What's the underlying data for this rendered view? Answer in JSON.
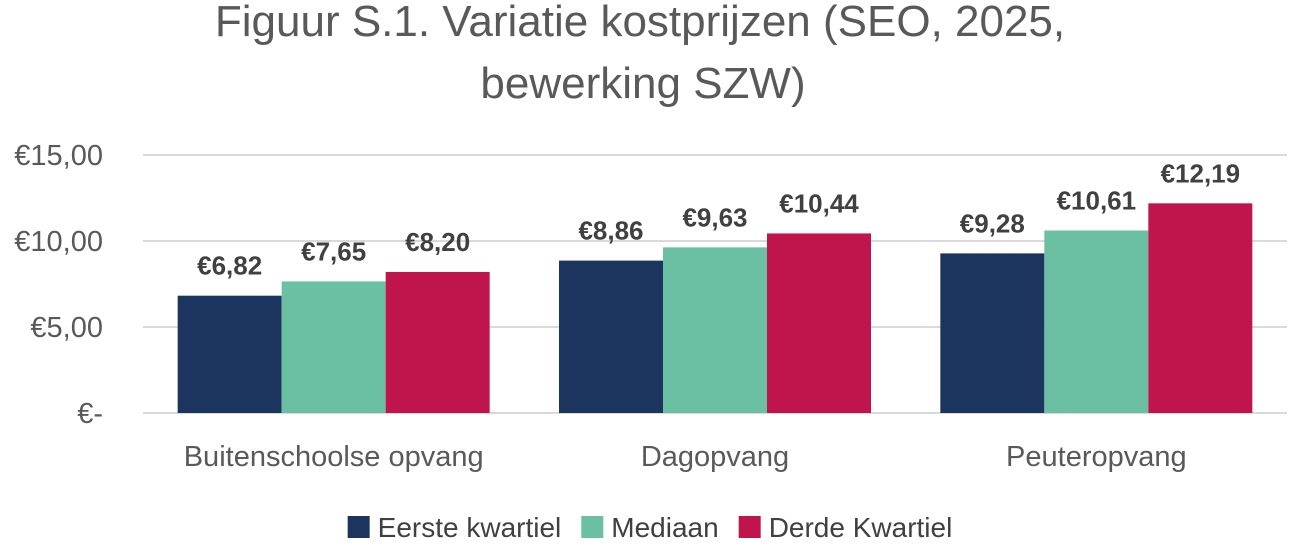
{
  "chart_data": {
    "type": "bar",
    "title_lines": [
      "Figuur S.1. Variatie kostprijzen (SEO, 2025,",
      "bewerking SZW)"
    ],
    "categories": [
      "Buitenschoolse opvang",
      "Dagopvang",
      "Peuteropvang"
    ],
    "series": [
      {
        "name": "Eerste kwartiel",
        "color": "#1b355e",
        "values": [
          6.82,
          8.86,
          9.28
        ],
        "labels": [
          "€6,82",
          "€8,86",
          "€9,28"
        ]
      },
      {
        "name": "Mediaan",
        "color": "#6bbfa3",
        "values": [
          7.65,
          9.63,
          10.61
        ],
        "labels": [
          "€7,65",
          "€9,63",
          "€10,61"
        ]
      },
      {
        "name": "Derde Kwartiel",
        "color": "#c0144c",
        "values": [
          8.2,
          10.44,
          12.19
        ],
        "labels": [
          "€8,20",
          "€10,44",
          "€12,19"
        ]
      }
    ],
    "yticks": [
      0,
      5,
      10,
      15
    ],
    "ytick_labels": [
      "€-",
      "€5,00",
      "€10,00",
      "€15,00"
    ],
    "ylim": [
      0,
      15
    ],
    "grid": true,
    "legend_position": "bottom"
  }
}
